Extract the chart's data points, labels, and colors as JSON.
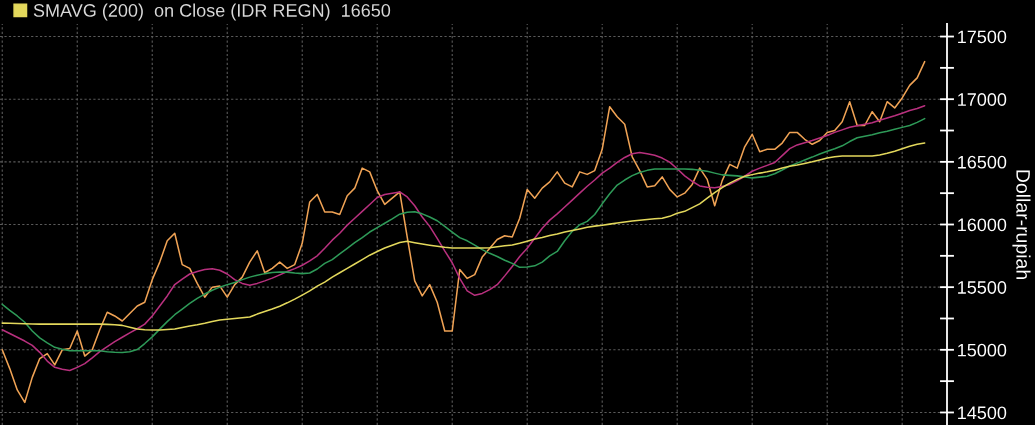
{
  "chart_data": {
    "type": "line",
    "categories": [
      null,
      null,
      null,
      null,
      null,
      null,
      null,
      null,
      null,
      null,
      null,
      null,
      null,
      null,
      null,
      null,
      null,
      null,
      null,
      null,
      null,
      null,
      null,
      null,
      null,
      null,
      null,
      null,
      null,
      null,
      null,
      null,
      null,
      null,
      null,
      null,
      null,
      null,
      null,
      null,
      null,
      null,
      null,
      null,
      null,
      null,
      null,
      null,
      null,
      null,
      null,
      null,
      null,
      null,
      null,
      null,
      null,
      null,
      null,
      null,
      null,
      null,
      null,
      null,
      null,
      null,
      null,
      null,
      null,
      null,
      null,
      null,
      null,
      null,
      null,
      null,
      null,
      null,
      null,
      null,
      null,
      null,
      null,
      null,
      null,
      null,
      null,
      null,
      null,
      null,
      null,
      null,
      null,
      null,
      null,
      null,
      null,
      null,
      null,
      null,
      null,
      null,
      null,
      null,
      null,
      null,
      null,
      null,
      null,
      null,
      null,
      null,
      null,
      null,
      null,
      null,
      null,
      null,
      null,
      null,
      null,
      null,
      null,
      null
    ],
    "ylabel": "Dollar-rupiah",
    "ylim": [
      14400,
      17600
    ],
    "yticks": [
      14500,
      {
        "value": 14750,
        "label": null
      },
      15000,
      {
        "value": 15250,
        "label": null
      },
      15500,
      {
        "value": 15750,
        "label": null
      },
      16000,
      {
        "value": 16250,
        "label": null
      },
      16500,
      {
        "value": 16750,
        "label": null
      },
      17000,
      {
        "value": 17250,
        "label": null
      },
      17500
    ],
    "tick_labels": "y",
    "grid": true,
    "legend": "top left",
    "series": [
      {
        "color": "#f0a355",
        "values": [
          15000,
          14850,
          14680,
          14580,
          14780,
          14930,
          14970,
          14880,
          15000,
          15010,
          15150,
          14950,
          15000,
          15160,
          15300,
          15270,
          15230,
          15290,
          15350,
          15380,
          15560,
          15700,
          15870,
          15930,
          15680,
          15650,
          15530,
          15420,
          15500,
          15510,
          15420,
          15520,
          15580,
          15700,
          15790,
          15615,
          15650,
          15700,
          15650,
          15680,
          15850,
          16180,
          16240,
          16100,
          16100,
          16080,
          16230,
          16290,
          16450,
          16420,
          16270,
          16160,
          16210,
          16260,
          15900,
          15550,
          15430,
          15520,
          15380,
          15150,
          15150,
          15640,
          15570,
          15600,
          15740,
          15810,
          15880,
          15910,
          15900,
          16050,
          16280,
          16210,
          16290,
          16340,
          16420,
          16330,
          16300,
          16420,
          16400,
          16430,
          16600,
          16940,
          16860,
          16800,
          16540,
          16430,
          16300,
          16310,
          16380,
          16280,
          16220,
          16250,
          16320,
          16450,
          16360,
          16150,
          16350,
          16480,
          16450,
          16620,
          16720,
          16580,
          16600,
          16600,
          16650,
          16735,
          16735,
          16680,
          16640,
          16670,
          16735,
          16750,
          16820,
          16980,
          16790,
          16790,
          16900,
          16820,
          16980,
          16930,
          17010,
          17110,
          17170,
          17300
        ]
      },
      {
        "color": "#b8307e",
        "values": [
          15160,
          15130,
          15100,
          15070,
          15035,
          14980,
          14910,
          14860,
          14845,
          14835,
          14860,
          14890,
          14935,
          14985,
          15025,
          15065,
          15100,
          15135,
          15168,
          15205,
          15270,
          15350,
          15430,
          15521,
          15565,
          15605,
          15625,
          15640,
          15647,
          15635,
          15605,
          15560,
          15530,
          15515,
          15530,
          15550,
          15572,
          15598,
          15625,
          15648,
          15675,
          15710,
          15750,
          15810,
          15875,
          15930,
          15995,
          16050,
          16105,
          16160,
          16215,
          16240,
          16250,
          16260,
          16220,
          16150,
          16060,
          15985,
          15890,
          15790,
          15695,
          15570,
          15470,
          15435,
          15450,
          15480,
          15520,
          15590,
          15665,
          15745,
          15810,
          15890,
          15970,
          16035,
          16085,
          16140,
          16195,
          16250,
          16305,
          16355,
          16410,
          16450,
          16495,
          16535,
          16565,
          16575,
          16565,
          16552,
          16530,
          16498,
          16445,
          16388,
          16345,
          16308,
          16298,
          16293,
          16303,
          16320,
          16350,
          16385,
          16425,
          16450,
          16472,
          16495,
          16550,
          16605,
          16635,
          16652,
          16670,
          16690,
          16710,
          16735,
          16755,
          16776,
          16788,
          16800,
          16812,
          16832,
          16850,
          16868,
          16888,
          16909,
          16925,
          16948
        ]
      },
      {
        "color": "#2e9a58",
        "values": [
          15363,
          15315,
          15270,
          15220,
          15150,
          15095,
          15055,
          15020,
          15005,
          14992,
          14992,
          14992,
          14992,
          14992,
          14985,
          14980,
          14978,
          14985,
          15002,
          15050,
          15103,
          15165,
          15225,
          15280,
          15325,
          15370,
          15410,
          15445,
          15475,
          15500,
          15520,
          15537,
          15560,
          15580,
          15595,
          15608,
          15617,
          15621,
          15620,
          15613,
          15608,
          15613,
          15645,
          15690,
          15720,
          15765,
          15810,
          15855,
          15895,
          15940,
          15975,
          16010,
          16045,
          16082,
          16098,
          16102,
          16085,
          16060,
          16030,
          15985,
          15940,
          15895,
          15870,
          15835,
          15800,
          15770,
          15745,
          15715,
          15690,
          15658,
          15660,
          15670,
          15700,
          15750,
          15785,
          15870,
          15945,
          15998,
          16025,
          16080,
          16165,
          16245,
          16315,
          16355,
          16390,
          16415,
          16432,
          16443,
          16443,
          16443,
          16443,
          16443,
          16440,
          16433,
          16425,
          16410,
          16396,
          16392,
          16388,
          16380,
          16372,
          16378,
          16385,
          16405,
          16435,
          16467,
          16490,
          16515,
          16538,
          16563,
          16585,
          16605,
          16628,
          16662,
          16692,
          16705,
          16716,
          16733,
          16745,
          16760,
          16775,
          16790,
          16815,
          16845
        ]
      },
      {
        "name": "SMAVG (200)  on Close (IDR REGN)  16650",
        "color": "#e3d85c",
        "values": [
          15213,
          15212,
          15210,
          15208,
          15206,
          15205,
          15205,
          15205,
          15205,
          15205,
          15205,
          15205,
          15205,
          15205,
          15203,
          15200,
          15195,
          15180,
          15166,
          15160,
          15158,
          15158,
          15162,
          15166,
          15178,
          15190,
          15200,
          15212,
          15226,
          15238,
          15244,
          15250,
          15256,
          15262,
          15285,
          15305,
          15325,
          15348,
          15375,
          15405,
          15437,
          15470,
          15508,
          15540,
          15580,
          15615,
          15650,
          15685,
          15720,
          15755,
          15785,
          15812,
          15835,
          15856,
          15866,
          15855,
          15845,
          15835,
          15826,
          15818,
          15812,
          15812,
          15812,
          15812,
          15812,
          15815,
          15822,
          15830,
          15836,
          15850,
          15867,
          15884,
          15897,
          15912,
          15925,
          15940,
          15952,
          15965,
          15978,
          15987,
          15994,
          16003,
          16012,
          16020,
          16028,
          16034,
          16040,
          16045,
          16050,
          16065,
          16090,
          16105,
          16135,
          16165,
          16210,
          16255,
          16295,
          16330,
          16360,
          16385,
          16398,
          16410,
          16420,
          16433,
          16450,
          16465,
          16475,
          16487,
          16500,
          16515,
          16530,
          16540,
          16546,
          16546,
          16546,
          16546,
          16546,
          16555,
          16568,
          16585,
          16605,
          16625,
          16640,
          16650
        ]
      }
    ]
  }
}
